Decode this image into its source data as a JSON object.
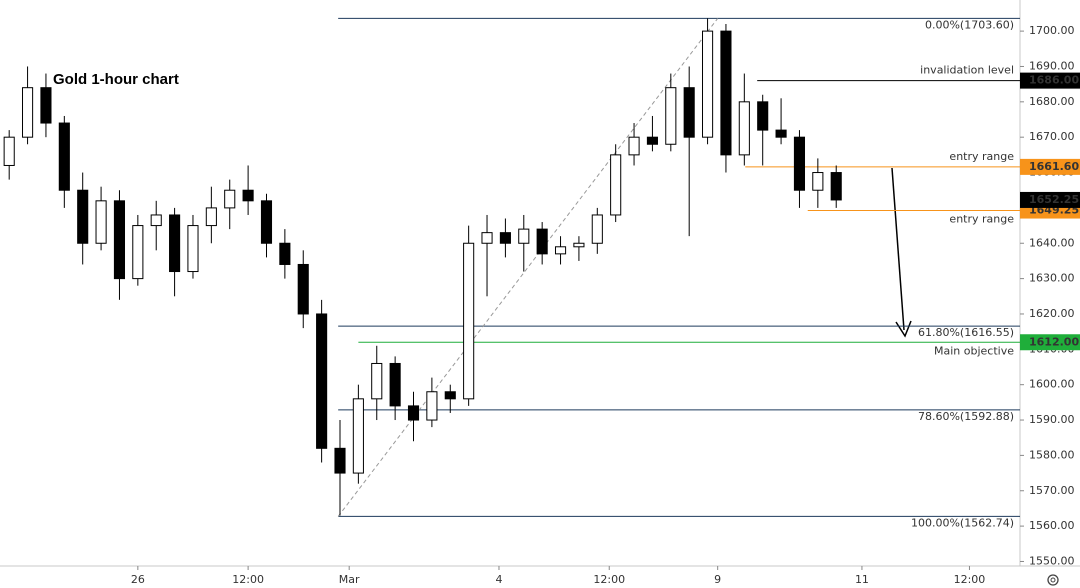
{
  "chart_data": {
    "type": "candlestick",
    "title": "Gold 1-hour chart",
    "x": [
      1,
      3,
      5,
      7,
      9,
      11,
      13,
      15,
      17,
      19,
      21,
      23,
      25,
      27,
      29,
      31,
      33,
      35,
      37,
      39,
      41,
      43,
      45,
      47,
      49,
      51,
      53,
      55,
      57,
      59,
      61,
      63,
      65,
      67,
      69,
      71,
      73,
      75,
      77,
      79,
      81,
      83,
      85,
      87,
      89,
      91
    ],
    "open": [
      1662,
      1670,
      1684,
      1674,
      1655,
      1640,
      1652,
      1630,
      1645,
      1648,
      1632,
      1645,
      1650,
      1655,
      1652,
      1640,
      1634,
      1620,
      1582,
      1575,
      1596,
      1606,
      1594,
      1590,
      1598,
      1596,
      1640,
      1643,
      1640,
      1644,
      1637,
      1639,
      1640,
      1648,
      1665,
      1670,
      1668,
      1684,
      1670,
      1700,
      1665,
      1680,
      1672,
      1670,
      1655,
      1660
    ],
    "high": [
      1672,
      1690,
      1688,
      1676,
      1660,
      1656,
      1655,
      1648,
      1652,
      1650,
      1648,
      1656,
      1658,
      1662,
      1654,
      1644,
      1638,
      1624,
      1590,
      1600,
      1611,
      1608,
      1598,
      1602,
      1600,
      1645,
      1648,
      1647,
      1648,
      1646,
      1642,
      1642,
      1650,
      1668,
      1674,
      1676,
      1688,
      1690,
      1703.6,
      1702,
      1688,
      1682,
      1681,
      1672,
      1664,
      1662
    ],
    "low": [
      1658,
      1668,
      1670,
      1650,
      1634,
      1638,
      1624,
      1628,
      1638,
      1625,
      1630,
      1640,
      1644,
      1648,
      1636,
      1630,
      1616,
      1578,
      1563,
      1572,
      1590,
      1590,
      1584,
      1588,
      1592,
      1594,
      1625,
      1636,
      1632,
      1634,
      1634,
      1635,
      1637,
      1646,
      1662,
      1666,
      1666,
      1642,
      1668,
      1660,
      1662,
      1662,
      1668,
      1650,
      1650,
      1650
    ],
    "close": [
      1670,
      1684,
      1674,
      1655,
      1640,
      1652,
      1630,
      1645,
      1648,
      1632,
      1645,
      1650,
      1655,
      1652,
      1640,
      1634,
      1620,
      1582,
      1575,
      1596,
      1606,
      1594,
      1590,
      1598,
      1596,
      1640,
      1643,
      1640,
      1644,
      1637,
      1639,
      1640,
      1648,
      1665,
      1670,
      1668,
      1684,
      1670,
      1700,
      1665,
      1680,
      1672,
      1670,
      1655,
      1660,
      1652.25
    ],
    "up_color": "#ffffff",
    "down_color": "#000000",
    "xlim": [
      0,
      111
    ],
    "ylim": [
      1549,
      1708.8
    ],
    "xticks": [
      {
        "value": 15,
        "label": "26"
      },
      {
        "value": 27,
        "label": "12:00"
      },
      {
        "value": 38,
        "label": "Mar"
      },
      {
        "value": 54.3,
        "label": "4"
      },
      {
        "value": 66.3,
        "label": "12:00"
      },
      {
        "value": 78.1,
        "label": "9"
      },
      {
        "value": 93.8,
        "label": "11"
      },
      {
        "value": 105.5,
        "label": "12:00"
      }
    ],
    "yticks": [
      {
        "value": 1550,
        "label": "1550.00"
      },
      {
        "value": 1560,
        "label": "1560.00"
      },
      {
        "value": 1570,
        "label": "1570.00"
      },
      {
        "value": 1580,
        "label": "1580.00"
      },
      {
        "value": 1590,
        "label": "1590.00"
      },
      {
        "value": 1600,
        "label": "1600.00"
      },
      {
        "value": 1610,
        "label": "1610.00"
      },
      {
        "value": 1620,
        "label": "1620.00"
      },
      {
        "value": 1630,
        "label": "1630.00"
      },
      {
        "value": 1640,
        "label": "1640.00"
      },
      {
        "value": 1650,
        "label": "1650.00"
      },
      {
        "value": 1660,
        "label": "1660.00"
      },
      {
        "value": 1670,
        "label": "1670.00"
      },
      {
        "value": 1680,
        "label": "1680.00"
      },
      {
        "value": 1690,
        "label": "1690.00"
      },
      {
        "value": 1700,
        "label": "1700.00"
      }
    ],
    "grid": false,
    "fib_color": "#1e3a5c",
    "fib_levels": [
      {
        "label": "0.00%(1703.60)",
        "value": 1703.6
      },
      {
        "label": "61.80%(1616.55)",
        "value": 1616.55
      },
      {
        "label": "78.60%(1592.88)",
        "value": 1592.88
      },
      {
        "label": "100.00%(1562.74)",
        "value": 1562.74
      }
    ],
    "fib_x_start": 36.8,
    "trend_line": {
      "x": [
        36.8,
        78.1
      ],
      "y": [
        1562.74,
        1703.6
      ]
    },
    "levels": [
      {
        "text": "invalidation level",
        "value": 1686,
        "label": "1686.00",
        "color": "#000000",
        "x_start": 82.4,
        "text_side": "above"
      },
      {
        "text": "entry range",
        "value": 1661.6,
        "label": "1661.60",
        "color": "#f7931a",
        "x_start": 81.1,
        "text_side": "above"
      },
      {
        "text": "entry range",
        "value": 1649.25,
        "label": "1649.25",
        "color": "#f7931a",
        "x_start": 87.9,
        "text_side": "below"
      },
      {
        "text": "Main objective",
        "value": 1612,
        "label": "1612.00",
        "color": "#1fae3a",
        "x_start": 39,
        "text_side": "below"
      }
    ],
    "last_price": {
      "value": 1652.25,
      "label": "1652.25",
      "color": "#000000"
    }
  }
}
